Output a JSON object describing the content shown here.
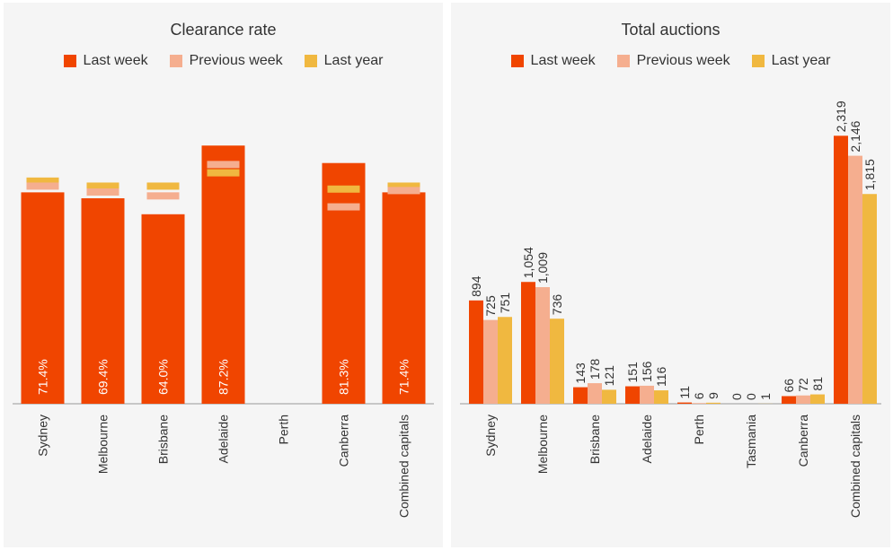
{
  "colors": {
    "last_week": "#f04500",
    "previous_week": "#f5ae8f",
    "last_year": "#f0b840",
    "axis": "#999999",
    "text": "#333333"
  },
  "legend": {
    "last_week": "Last week",
    "previous_week": "Previous week",
    "last_year": "Last year"
  },
  "chart_data": [
    {
      "type": "bar",
      "title": "Clearance rate",
      "categories": [
        "Sydney",
        "Melbourne",
        "Brisbane",
        "Adelaide",
        "Perth",
        "Canberra",
        "Combined capitals"
      ],
      "series": [
        {
          "name": "Last week",
          "values": [
            71.4,
            69.4,
            64.0,
            87.2,
            null,
            81.3,
            71.4
          ],
          "labels": [
            "71.4%",
            "69.4%",
            "64.0%",
            "87.2%",
            "",
            "81.3%",
            "71.4%"
          ]
        },
        {
          "name": "Previous week",
          "values": [
            73.5,
            71.5,
            70.2,
            80.8,
            null,
            66.5,
            72.0
          ]
        },
        {
          "name": "Last year",
          "values": [
            75.2,
            73.5,
            73.5,
            78.0,
            null,
            72.5,
            73.5
          ]
        }
      ],
      "ylim": [
        0,
        100
      ],
      "xlabel": "",
      "ylabel": ""
    },
    {
      "type": "bar",
      "title": "Total auctions",
      "categories": [
        "Sydney",
        "Melbourne",
        "Brisbane",
        "Adelaide",
        "Perth",
        "Tasmania",
        "Canberra",
        "Combined capitals"
      ],
      "series": [
        {
          "name": "Last week",
          "values": [
            894,
            1054,
            143,
            151,
            11,
            0,
            66,
            2319
          ],
          "labels": [
            "894",
            "1,054",
            "143",
            "151",
            "11",
            "0",
            "66",
            "2,319"
          ]
        },
        {
          "name": "Previous week",
          "values": [
            725,
            1009,
            178,
            156,
            6,
            0,
            72,
            2146
          ],
          "labels": [
            "725",
            "1,009",
            "178",
            "156",
            "6",
            "0",
            "72",
            "2,146"
          ]
        },
        {
          "name": "Last year",
          "values": [
            751,
            736,
            121,
            116,
            9,
            1,
            81,
            1815
          ],
          "labels": [
            "751",
            "736",
            "121",
            "116",
            "9",
            "1",
            "81",
            "1,815"
          ]
        }
      ],
      "ylim": [
        0,
        2500
      ],
      "xlabel": "",
      "ylabel": ""
    }
  ]
}
